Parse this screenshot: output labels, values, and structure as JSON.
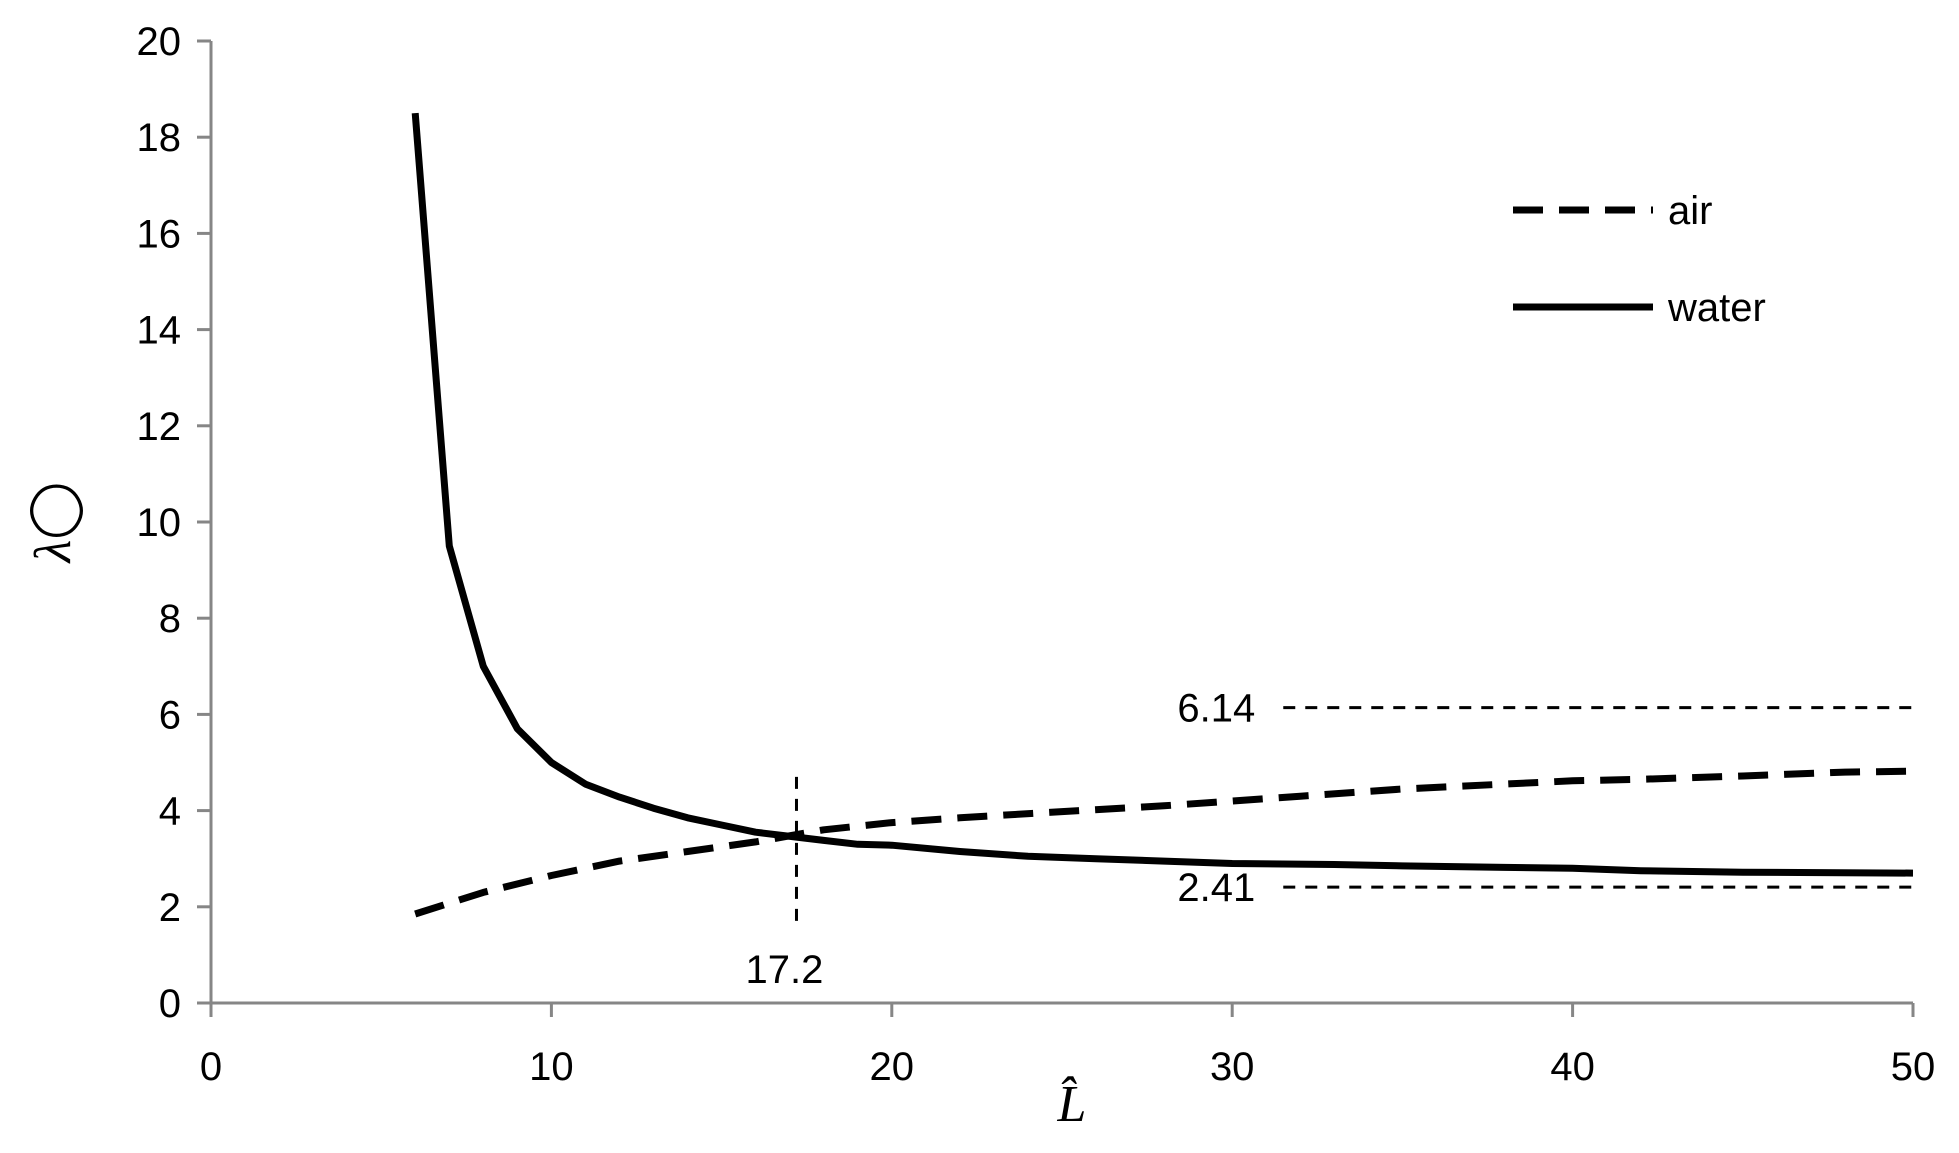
{
  "chart_data": {
    "type": "line",
    "title": "",
    "xlabel": "L̂",
    "ylabel": "λ◯",
    "xlim": [
      0,
      50
    ],
    "ylim": [
      0,
      20
    ],
    "x_ticks": [
      0,
      10,
      20,
      30,
      40,
      50
    ],
    "y_ticks": [
      0,
      2,
      4,
      6,
      8,
      10,
      12,
      14,
      16,
      18,
      20
    ],
    "grid": false,
    "legend_position": "top-right",
    "series": [
      {
        "name": "air",
        "style": "dashed",
        "color": "#000000",
        "x": [
          6,
          8,
          10,
          12,
          14,
          16,
          17.2,
          18,
          20,
          22,
          25,
          28,
          30,
          32,
          35,
          38,
          40,
          42,
          45,
          48,
          50
        ],
        "y": [
          1.85,
          2.3,
          2.65,
          2.95,
          3.15,
          3.35,
          3.5,
          3.6,
          3.75,
          3.85,
          3.98,
          4.1,
          4.2,
          4.3,
          4.45,
          4.55,
          4.62,
          4.65,
          4.72,
          4.8,
          4.82
        ]
      },
      {
        "name": "water",
        "style": "solid",
        "color": "#000000",
        "x": [
          6,
          7,
          8,
          9,
          10,
          11,
          12,
          13,
          14,
          15,
          16,
          17.2,
          18,
          19,
          20,
          22,
          24,
          26,
          28,
          30,
          33,
          35,
          38,
          40,
          42,
          45,
          50
        ],
        "y": [
          18.5,
          9.5,
          7.0,
          5.7,
          5.0,
          4.55,
          4.28,
          4.05,
          3.85,
          3.7,
          3.55,
          3.45,
          3.38,
          3.3,
          3.28,
          3.15,
          3.05,
          3.0,
          2.95,
          2.9,
          2.88,
          2.85,
          2.82,
          2.8,
          2.75,
          2.72,
          2.7
        ]
      }
    ],
    "reference_lines": [
      {
        "type": "horizontal",
        "y": 6.14,
        "x_from": 31.5,
        "x_to": 50,
        "label": "6.14"
      },
      {
        "type": "horizontal",
        "y": 2.41,
        "x_from": 31.5,
        "x_to": 50,
        "label": "2.41"
      },
      {
        "type": "vertical",
        "x": 17.2,
        "y_from": 1.7,
        "y_to": 4.7,
        "label": "17.2"
      }
    ]
  }
}
